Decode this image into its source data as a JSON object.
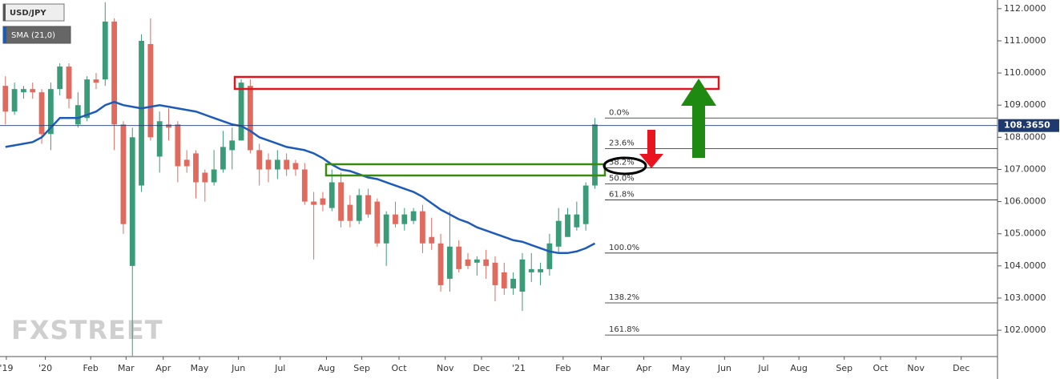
{
  "chart_data": {
    "type": "candlestick",
    "candles": {
      "name": "USD/JPY",
      "color_up": "#3a9b78",
      "color_down": "#e06a5e",
      "open": [
        109.6,
        108.8,
        109.4,
        109.5,
        109.4,
        108.1,
        109.5,
        110.2,
        108.4,
        108.6,
        109.8,
        109.8,
        111.6,
        108.4,
        104.0,
        106.5,
        110.9,
        107.4,
        108.4,
        108.4,
        107.3,
        107.5,
        106.9,
        106.6,
        107.0,
        107.6,
        107.9,
        109.6,
        107.6,
        107.3,
        107.0,
        107.3,
        107.2,
        107.0,
        106.0,
        106.1,
        105.8,
        106.6,
        105.9,
        105.4,
        106.2,
        106.0,
        104.7,
        105.6,
        105.3,
        105.4,
        105.7,
        104.9,
        104.7,
        103.6,
        104.6,
        104.2,
        104.1,
        104.2,
        104.1,
        103.8,
        103.3,
        103.2,
        103.8,
        103.8,
        103.9,
        104.6,
        104.9,
        105.2,
        105.3,
        106.5
      ],
      "high": [
        109.9,
        109.7,
        109.6,
        109.7,
        109.5,
        109.7,
        110.3,
        110.3,
        109.4,
        109.9,
        110.0,
        112.2,
        111.7,
        108.5,
        108.3,
        111.2,
        111.7,
        108.8,
        108.9,
        108.5,
        107.6,
        107.6,
        107.0,
        107.6,
        108.2,
        108.3,
        109.8,
        109.8,
        107.8,
        107.5,
        107.6,
        107.5,
        107.3,
        107.2,
        106.3,
        106.3,
        107.0,
        106.9,
        106.2,
        106.4,
        106.4,
        106.1,
        105.7,
        106.0,
        105.8,
        105.8,
        105.9,
        105.5,
        105.0,
        105.7,
        104.8,
        104.4,
        104.3,
        104.5,
        104.3,
        104.1,
        103.8,
        104.4,
        104.4,
        104.1,
        105.0,
        105.8,
        105.8,
        106.0,
        106.6,
        108.6
      ],
      "low": [
        108.4,
        108.7,
        109.2,
        109.2,
        107.8,
        107.6,
        109.3,
        108.9,
        108.3,
        108.5,
        109.5,
        109.6,
        107.6,
        105.0,
        101.2,
        106.3,
        107.9,
        106.9,
        107.9,
        106.6,
        106.9,
        106.1,
        106.0,
        106.5,
        106.9,
        107.0,
        107.9,
        107.5,
        106.5,
        106.6,
        106.7,
        106.8,
        106.8,
        105.9,
        104.2,
        105.7,
        105.7,
        105.2,
        105.2,
        105.3,
        105.5,
        104.6,
        104.0,
        105.2,
        105.1,
        105.3,
        104.4,
        104.5,
        103.2,
        103.2,
        103.8,
        103.9,
        103.7,
        103.6,
        102.9,
        103.1,
        103.1,
        102.6,
        103.5,
        103.4,
        103.7,
        104.4,
        104.9,
        105.1,
        105.1,
        106.4
      ],
      "close": [
        108.8,
        109.5,
        109.5,
        109.4,
        108.1,
        109.5,
        110.2,
        109.2,
        109.0,
        109.8,
        109.7,
        111.6,
        108.4,
        105.3,
        108.0,
        111.0,
        108.0,
        108.5,
        108.3,
        107.1,
        107.1,
        106.6,
        106.6,
        107.0,
        107.7,
        107.9,
        109.7,
        107.6,
        107.0,
        107.0,
        107.3,
        107.0,
        107.0,
        106.0,
        105.9,
        105.9,
        106.6,
        105.4,
        105.4,
        106.2,
        105.6,
        104.7,
        105.6,
        105.3,
        105.6,
        105.7,
        104.7,
        104.7,
        103.4,
        104.6,
        103.9,
        104.0,
        104.2,
        104.0,
        103.4,
        103.3,
        103.6,
        104.2,
        103.9,
        103.9,
        104.7,
        105.4,
        105.6,
        105.6,
        106.5,
        108.4
      ]
    },
    "sma": {
      "name": "SMA (21,0)",
      "color": "#1e5bb8",
      "values": [
        107.7,
        107.75,
        107.8,
        107.85,
        108.0,
        108.3,
        108.6,
        108.6,
        108.6,
        108.7,
        108.8,
        109.0,
        109.1,
        109.0,
        108.95,
        108.9,
        108.95,
        109.0,
        108.95,
        108.9,
        108.85,
        108.8,
        108.7,
        108.6,
        108.5,
        108.4,
        108.35,
        108.2,
        108.0,
        107.9,
        107.8,
        107.7,
        107.65,
        107.6,
        107.5,
        107.35,
        107.15,
        107.0,
        106.95,
        106.85,
        106.75,
        106.7,
        106.6,
        106.5,
        106.4,
        106.3,
        106.15,
        105.95,
        105.75,
        105.6,
        105.45,
        105.35,
        105.2,
        105.1,
        105.0,
        104.9,
        104.8,
        104.75,
        104.65,
        104.55,
        104.45,
        104.4,
        104.4,
        104.45,
        104.55,
        104.7
      ]
    },
    "last_price": {
      "value": 108.365,
      "label": "108.3650",
      "color": "#1e3a6e"
    },
    "fib_levels": [
      {
        "label": "0.0%",
        "value": 108.6
      },
      {
        "label": "23.6%",
        "value": 107.65
      },
      {
        "label": "38.2%",
        "value": 107.05
      },
      {
        "label": "50.0%",
        "value": 106.55
      },
      {
        "label": "61.8%",
        "value": 106.05
      },
      {
        "label": "100.0%",
        "value": 104.4
      },
      {
        "label": "138.2%",
        "value": 102.85
      },
      {
        "label": "161.8%",
        "value": 101.85
      }
    ],
    "xlim": [
      -0.6,
      109.4
    ],
    "xticks": [
      {
        "value": 0.1,
        "label": "'19"
      },
      {
        "value": 4.4,
        "label": "'20"
      },
      {
        "value": 9.4,
        "label": "Feb"
      },
      {
        "value": 13.3,
        "label": "Mar"
      },
      {
        "value": 17.4,
        "label": "Apr"
      },
      {
        "value": 21.4,
        "label": "May"
      },
      {
        "value": 25.7,
        "label": "Jun"
      },
      {
        "value": 30.3,
        "label": "Jul"
      },
      {
        "value": 35.4,
        "label": "Aug"
      },
      {
        "value": 39.3,
        "label": "Sep"
      },
      {
        "value": 43.4,
        "label": "Oct"
      },
      {
        "value": 48.5,
        "label": "Nov"
      },
      {
        "value": 52.5,
        "label": "Dec"
      },
      {
        "value": 56.6,
        "label": "'21"
      },
      {
        "value": 61.5,
        "label": "Feb"
      },
      {
        "value": 65.7,
        "label": "Mar"
      },
      {
        "value": 70.4,
        "label": "Apr"
      },
      {
        "value": 74.5,
        "label": "May"
      },
      {
        "value": 79.3,
        "label": "Jun"
      },
      {
        "value": 83.6,
        "label": "Jul"
      },
      {
        "value": 87.5,
        "label": "Aug"
      },
      {
        "value": 92.5,
        "label": "Sep"
      },
      {
        "value": 96.5,
        "label": "Oct"
      },
      {
        "value": 100.4,
        "label": "Nov"
      },
      {
        "value": 105.4,
        "label": "Dec"
      }
    ],
    "ylim": [
      101.18,
      112.27
    ],
    "yticks": [
      {
        "value": 102,
        "label": "102.0000"
      },
      {
        "value": 103,
        "label": "103.0000"
      },
      {
        "value": 104,
        "label": "104.0000"
      },
      {
        "value": 105,
        "label": "105.0000"
      },
      {
        "value": 106,
        "label": "106.0000"
      },
      {
        "value": 107,
        "label": "107.0000"
      },
      {
        "value": 108,
        "label": "108.0000"
      },
      {
        "value": 109,
        "label": "109.0000"
      },
      {
        "value": 110,
        "label": "110.0000"
      },
      {
        "value": 111,
        "label": "111.0000"
      },
      {
        "value": 112,
        "label": "112.0000"
      }
    ],
    "watermark": "FXSTREET"
  }
}
